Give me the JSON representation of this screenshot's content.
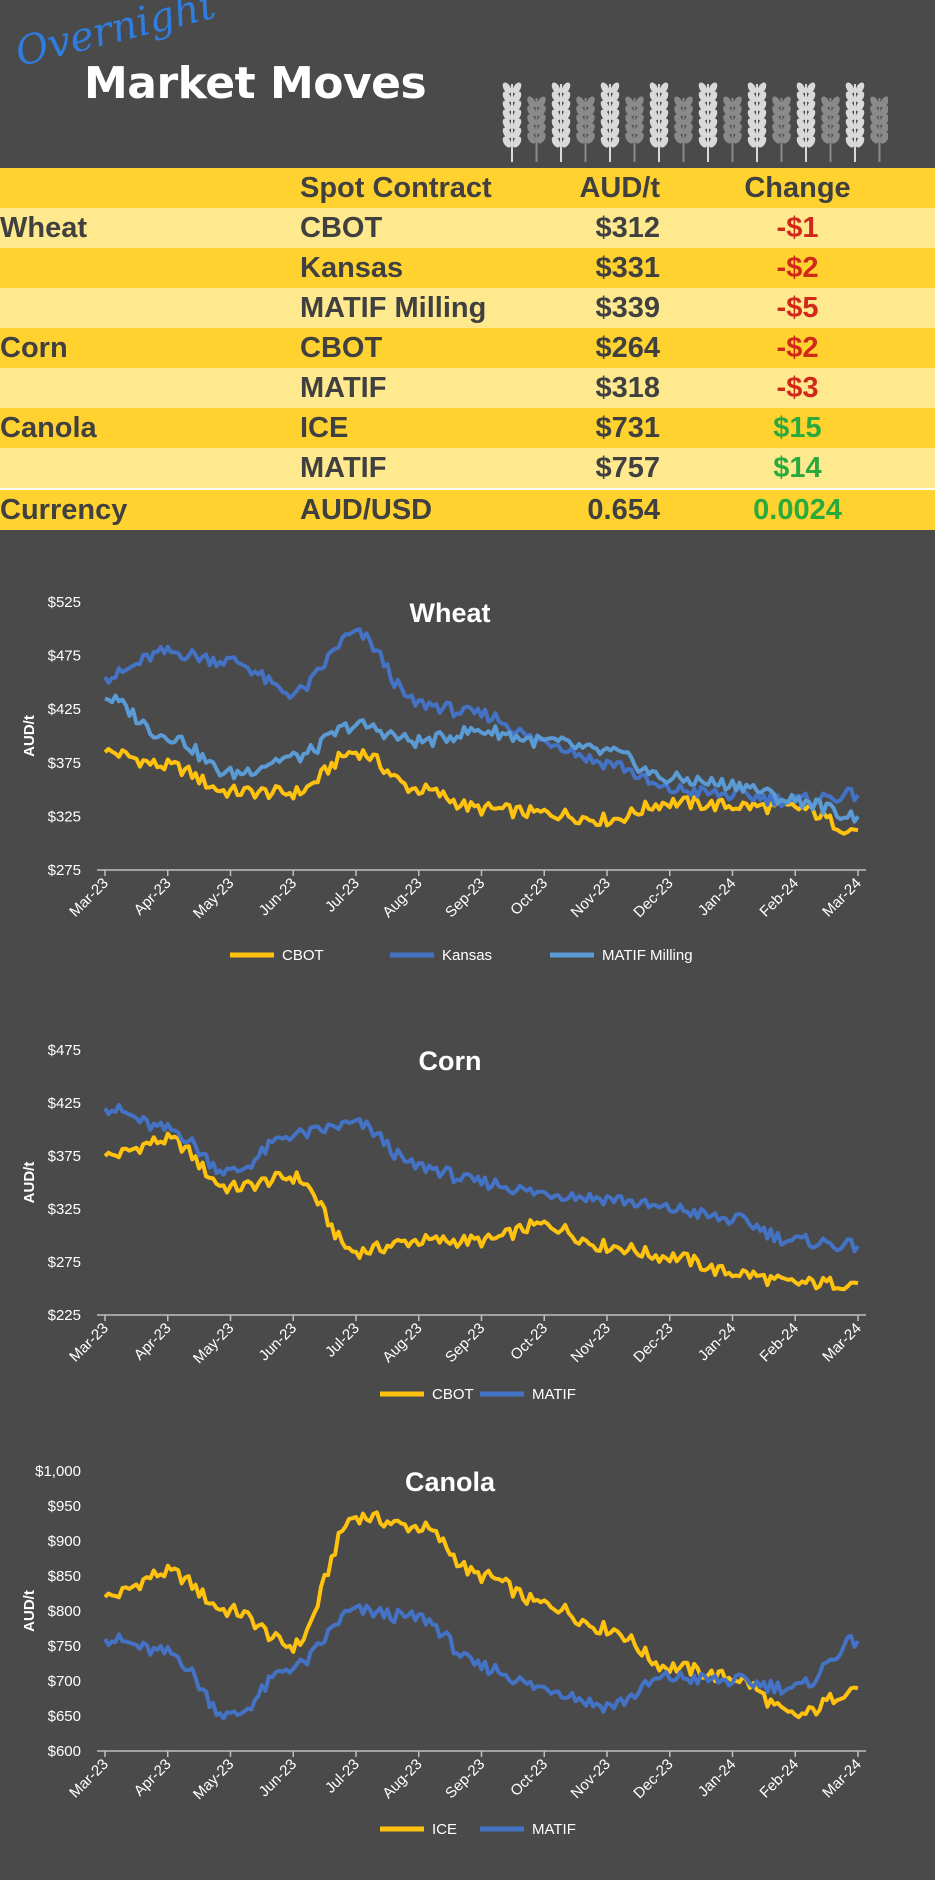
{
  "header": {
    "logo_script": "Overnight",
    "logo_main": "Market Moves"
  },
  "table": {
    "headers": [
      "",
      "Spot Contract",
      "AUD/t",
      "Change"
    ],
    "rows": [
      {
        "commodity": "Wheat",
        "contract": "CBOT",
        "price": "$312",
        "change": "-$1",
        "dir": "neg",
        "shade": "light"
      },
      {
        "commodity": "",
        "contract": "Kansas",
        "price": "$331",
        "change": "-$2",
        "dir": "neg",
        "shade": "dark"
      },
      {
        "commodity": "",
        "contract": "MATIF Milling",
        "price": "$339",
        "change": "-$5",
        "dir": "neg",
        "shade": "light"
      },
      {
        "commodity": "Corn",
        "contract": "CBOT",
        "price": "$264",
        "change": "-$2",
        "dir": "neg",
        "shade": "dark"
      },
      {
        "commodity": "",
        "contract": "MATIF",
        "price": "$318",
        "change": "-$3",
        "dir": "neg",
        "shade": "light"
      },
      {
        "commodity": "Canola",
        "contract": "ICE",
        "price": "$731",
        "change": "$15",
        "dir": "pos",
        "shade": "dark"
      },
      {
        "commodity": "",
        "contract": "MATIF",
        "price": "$757",
        "change": "$14",
        "dir": "pos",
        "shade": "light"
      },
      {
        "commodity": "Currency",
        "contract": "AUD/USD",
        "price": "0.654",
        "change": "0.0024",
        "dir": "pos",
        "shade": "dark"
      }
    ]
  },
  "colors": {
    "gold": "#ffc20e",
    "blue": "#4472c4",
    "light_blue": "#5b9bd5",
    "negative": "#d0281a",
    "positive": "#2aaa3c",
    "background": "#4a4a4a"
  },
  "chart_data": [
    {
      "type": "line",
      "title": "Wheat",
      "ylabel": "AUD/t",
      "ylim": [
        275,
        525
      ],
      "yticks": [
        275,
        325,
        375,
        425,
        475,
        525
      ],
      "ytick_labels": [
        "$275",
        "$325",
        "$375",
        "$425",
        "$475",
        "$525"
      ],
      "xtick_labels": [
        "Mar-23",
        "Apr-23",
        "May-23",
        "Jun-23",
        "Jul-23",
        "Aug-23",
        "Sep-23",
        "Oct-23",
        "Nov-23",
        "Dec-23",
        "Jan-24",
        "Feb-24",
        "Mar-24"
      ],
      "x": [
        "Mar-23",
        "Apr-23",
        "May-23",
        "Jun-23",
        "Jul-23",
        "Aug-23",
        "Sep-23",
        "Oct-23",
        "Nov-23",
        "Dec-23",
        "Jan-24",
        "Feb-24",
        "Mar-24"
      ],
      "series": [
        {
          "name": "CBOT",
          "color": "#ffc20e",
          "values": [
            385,
            372,
            348,
            347,
            385,
            350,
            332,
            328,
            322,
            338,
            335,
            333,
            312
          ]
        },
        {
          "name": "Kansas",
          "color": "#4472c4",
          "values": [
            455,
            478,
            470,
            440,
            495,
            430,
            420,
            395,
            375,
            350,
            345,
            340,
            345
          ]
        },
        {
          "name": "MATIF Milling",
          "color": "#5b9bd5",
          "values": [
            435,
            400,
            365,
            380,
            410,
            395,
            405,
            395,
            385,
            360,
            355,
            340,
            325
          ]
        }
      ]
    },
    {
      "type": "line",
      "title": "Corn",
      "ylabel": "AUD/t",
      "ylim": [
        225,
        475
      ],
      "yticks": [
        225,
        275,
        325,
        375,
        425,
        475
      ],
      "ytick_labels": [
        "$225",
        "$275",
        "$325",
        "$375",
        "$425",
        "$475"
      ],
      "xtick_labels": [
        "Mar-23",
        "Apr-23",
        "May-23",
        "Jun-23",
        "Jul-23",
        "Aug-23",
        "Sep-23",
        "Oct-23",
        "Nov-23",
        "Dec-23",
        "Jan-24",
        "Feb-24",
        "Mar-24"
      ],
      "x": [
        "Mar-23",
        "Apr-23",
        "May-23",
        "Jun-23",
        "Jul-23",
        "Aug-23",
        "Sep-23",
        "Oct-23",
        "Nov-23",
        "Dec-23",
        "Jan-24",
        "Feb-24",
        "Mar-24"
      ],
      "series": [
        {
          "name": "CBOT",
          "color": "#ffc20e",
          "values": [
            375,
            390,
            345,
            355,
            285,
            295,
            295,
            310,
            290,
            280,
            265,
            255,
            255
          ]
        },
        {
          "name": "MATIF",
          "color": "#4472c4",
          "values": [
            420,
            400,
            360,
            395,
            405,
            365,
            350,
            340,
            335,
            325,
            315,
            295,
            290
          ]
        }
      ]
    },
    {
      "type": "line",
      "title": "Canola",
      "ylabel": "AUD/t",
      "ylim": [
        600,
        1000
      ],
      "yticks": [
        600,
        650,
        700,
        750,
        800,
        850,
        900,
        950,
        1000
      ],
      "ytick_labels": [
        "$600",
        "$650",
        "$700",
        "$750",
        "$800",
        "$850",
        "$900",
        "$950",
        "$1,000"
      ],
      "xtick_labels": [
        "Mar-23",
        "Apr-23",
        "May-23",
        "Jun-23",
        "Jul-23",
        "Aug-23",
        "Sep-23",
        "Oct-23",
        "Nov-23",
        "Dec-23",
        "Jan-24",
        "Feb-24",
        "Mar-24"
      ],
      "x": [
        "Mar-23",
        "Apr-23",
        "May-23",
        "Jun-23",
        "Jul-23",
        "Aug-23",
        "Sep-23",
        "Oct-23",
        "Nov-23",
        "Dec-23",
        "Jan-24",
        "Feb-24",
        "Mar-24"
      ],
      "series": [
        {
          "name": "ICE",
          "color": "#ffc20e",
          "values": [
            820,
            855,
            800,
            750,
            935,
            920,
            850,
            810,
            775,
            720,
            705,
            650,
            690
          ]
        },
        {
          "name": "MATIF",
          "color": "#4472c4",
          "values": [
            760,
            740,
            650,
            720,
            800,
            790,
            720,
            690,
            665,
            705,
            700,
            690,
            757
          ]
        }
      ]
    }
  ]
}
